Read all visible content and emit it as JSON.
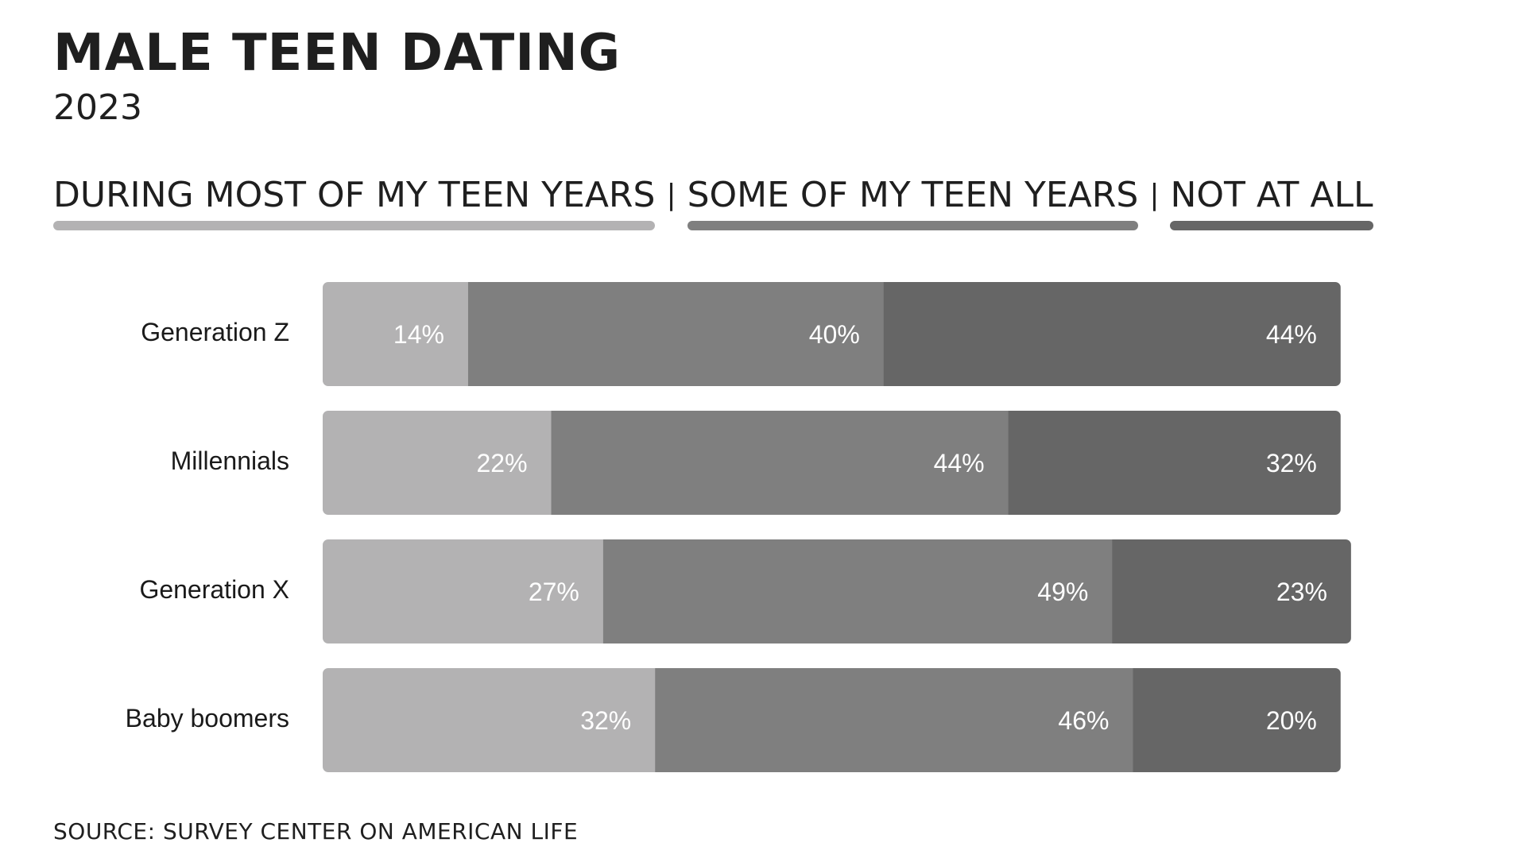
{
  "title": "MALE TEEN DATING",
  "subtitle": "2023",
  "source": "SOURCE: SURVEY CENTER ON AMERICAN LIFE",
  "chart_data": {
    "type": "bar",
    "orientation": "horizontal",
    "stacked": true,
    "categories": [
      "Generation Z",
      "Millennials",
      "Generation X",
      "Baby boomers"
    ],
    "series": [
      {
        "name": "DURING MOST OF MY TEEN YEARS",
        "color": "#b3b2b3",
        "values": [
          14,
          22,
          27,
          32
        ]
      },
      {
        "name": "SOME OF MY TEEN YEARS",
        "color": "#7f7f7f",
        "values": [
          40,
          44,
          49,
          46
        ]
      },
      {
        "name": "NOT AT ALL",
        "color": "#666666",
        "values": [
          44,
          32,
          23,
          20
        ]
      }
    ],
    "value_labels": [
      [
        "14%",
        "22%",
        "27%",
        "32%"
      ],
      [
        "40%",
        "44%",
        "49%",
        "46%"
      ],
      [
        "44%",
        "32%",
        "23%",
        "20%"
      ]
    ],
    "legend_position": "top",
    "grid": false,
    "xlim": [
      0,
      100
    ]
  }
}
